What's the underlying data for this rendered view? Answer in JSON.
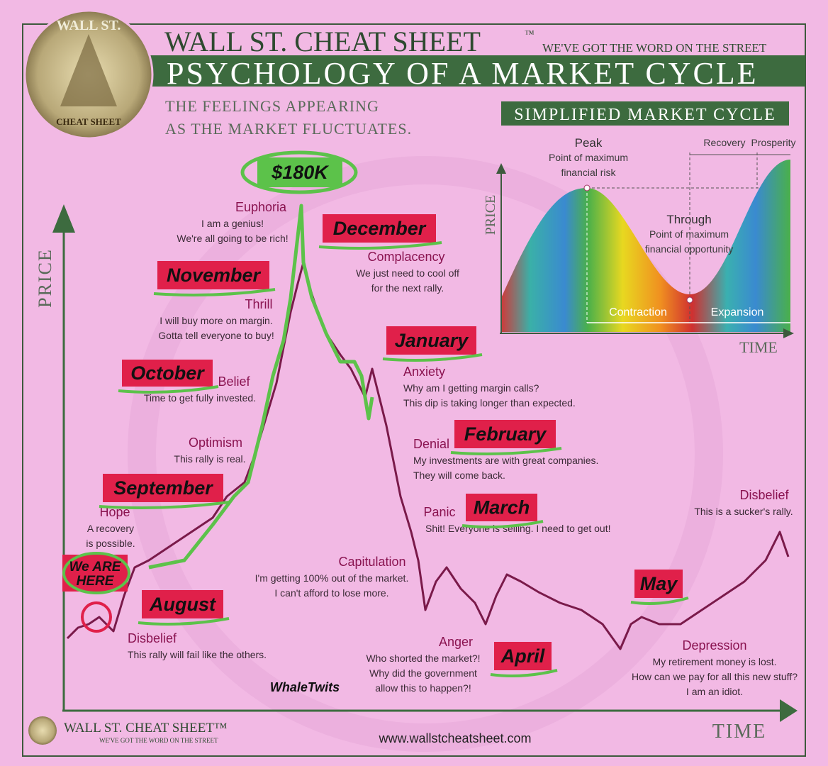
{
  "header": {
    "brand": "WALL ST. CHEAT SHEET",
    "trademark": "™",
    "tagline": "WE'VE GOT THE WORD ON THE STREET",
    "title": "PSYCHOLOGY OF A MARKET CYCLE",
    "subtitle_lines": [
      "THE FEELINGS APPEARING",
      "AS THE MARKET FLUCTUATES."
    ]
  },
  "logo": {
    "top": "WALL ST.",
    "bottom": "CHEAT SHEET"
  },
  "axes": {
    "y": "PRICE",
    "x": "TIME"
  },
  "stages": [
    {
      "name": "Disbelief",
      "lines": [
        "This rally will fail like the others."
      ]
    },
    {
      "name": "Hope",
      "lines": [
        "A recovery",
        "is possible."
      ]
    },
    {
      "name": "Optimism",
      "lines": [
        "This rally is real."
      ]
    },
    {
      "name": "Belief",
      "lines": [
        "Time to get fully invested."
      ]
    },
    {
      "name": "Thrill",
      "lines": [
        "I will buy more on margin.",
        "Gotta tell everyone to buy!"
      ]
    },
    {
      "name": "Euphoria",
      "lines": [
        "I am a genius!",
        "We're all going to be rich!"
      ]
    },
    {
      "name": "Complacency",
      "lines": [
        "We just need to cool off",
        "for the next rally."
      ]
    },
    {
      "name": "Anxiety",
      "lines": [
        "Why am I getting margin calls?",
        "This dip is taking longer than expected."
      ]
    },
    {
      "name": "Denial",
      "lines": [
        "My investments are with great companies.",
        "They will come back."
      ]
    },
    {
      "name": "Panic",
      "lines": [
        "Shit! Everyone is selling.  I need to get out!"
      ]
    },
    {
      "name": "Capitulation",
      "lines": [
        "I'm getting 100% out of the market.",
        "I can't afford to lose more."
      ]
    },
    {
      "name": "Anger",
      "lines": [
        "Who shorted the market?!",
        "Why did the government",
        "allow this to happen?!"
      ]
    },
    {
      "name": "Depression",
      "lines": [
        "My retirement money is lost.",
        "How can we pay for all this new stuff?",
        "I am an idiot."
      ]
    },
    {
      "name": "Disbelief",
      "lines": [
        "This is a sucker's rally."
      ]
    }
  ],
  "annotations": {
    "price": "$180K",
    "here": [
      "We ARE",
      "HERE"
    ],
    "months": [
      "August",
      "September",
      "October",
      "November",
      "December",
      "January",
      "February",
      "March",
      "April",
      "May"
    ]
  },
  "inset": {
    "title": "SIMPLIFIED MARKET CYCLE",
    "peak": {
      "name": "Peak",
      "lines": [
        "Point of maximum",
        "financial risk"
      ]
    },
    "trough": {
      "name": "Through",
      "lines": [
        "Point of maximum",
        "financial opportunity"
      ]
    },
    "phases": [
      "Recovery",
      "Prosperity",
      "Contraction",
      "Expansion"
    ],
    "y_axis": "PRICE",
    "x_axis": "TIME"
  },
  "watermark": "WhaleTwits",
  "footer": {
    "brand": "WALL ST. CHEAT SHEET™",
    "tagline": "WE'VE GOT THE WORD ON THE STREET",
    "url": "www.wallstcheatsheet.com"
  }
}
